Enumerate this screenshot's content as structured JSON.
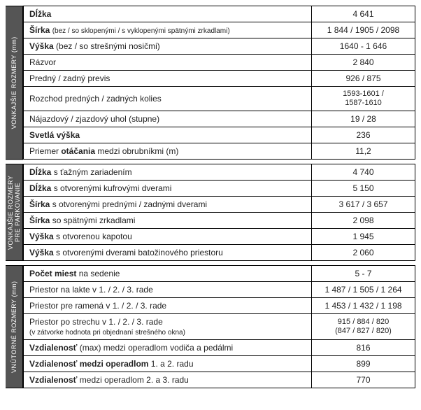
{
  "sections": [
    {
      "header": "VONKAJŠIE ROZMERY (mm)",
      "rows": [
        {
          "label_html": "<b>Dĺžka</b>",
          "value_html": "4 641"
        },
        {
          "label_html": "<b>Šírka</b> <span class='small'>(bez / so sklopenými / s vyklopenými spätnými zrkadlami)</span>",
          "value_html": "1 844 / 1905 / 2098"
        },
        {
          "label_html": "<b>Výška</b> (bez / so strešnými nosičmi)",
          "value_html": "1640 - 1 646"
        },
        {
          "label_html": "Rázvor",
          "value_html": "2 840"
        },
        {
          "label_html": "Predný / zadný previs",
          "value_html": "926 / 875"
        },
        {
          "label_html": "Rozchod predných / zadných kolies",
          "value_html": "<div class='twoline'>1593-1601 /<br>1587-1610</div>"
        },
        {
          "label_html": "Nájazdový / zjazdový uhol (stupne)",
          "value_html": "19 / 28"
        },
        {
          "label_html": "<b>Svetlá výška</b>",
          "value_html": "236"
        },
        {
          "label_html": "Priemer <b>otáčania</b> medzi obrubníkmi (m)",
          "value_html": "11,2"
        }
      ]
    },
    {
      "header": "VONKAJŠIE ROZMERY\nPRE PARKOVANIE",
      "rows": [
        {
          "label_html": "<b>Dĺžka</b> s ťažným zariadením",
          "value_html": "4 740"
        },
        {
          "label_html": "<b>Dĺžka</b> s otvorenými kufrovými dverami",
          "value_html": "5 150"
        },
        {
          "label_html": "<b>Šírka</b> s otvorenými prednými / zadnými dverami",
          "value_html": "3 617 / 3 657"
        },
        {
          "label_html": "<b>Šírka</b> so spätnými zrkadlami",
          "value_html": "2 098"
        },
        {
          "label_html": "<b>Výška</b> s otvorenou kapotou",
          "value_html": "1 945"
        },
        {
          "label_html": "<b>Výška</b> s otvorenými dverami batožinového priestoru",
          "value_html": "2 060"
        }
      ]
    },
    {
      "header": "VNÚTORNÉ ROZMERY (mm)",
      "rows": [
        {
          "label_html": "<b>Počet miest</b> na sedenie",
          "value_html": "5 - 7"
        },
        {
          "label_html": "Priestor na lakte v 1. / 2. / 3. rade",
          "value_html": "1 487 / 1 505 / 1 264"
        },
        {
          "label_html": "Priestor pre ramená v 1. / 2. / 3. rade",
          "value_html": "1 453 / 1 432 / 1 198"
        },
        {
          "label_html": "Priestor po strechu v 1. / 2. / 3. rade<br><span class='small'>(v zátvorke hodnota pri objednaní strešného okna)</span>",
          "value_html": "<div class='twoline'>915 / 884 / 820<br>(847 / 827 / 820)</div>"
        },
        {
          "label_html": "<b>Vzdialenosť</b> (max) medzi operadlom vodiča a pedálmi",
          "value_html": "816"
        },
        {
          "label_html": "<b>Vzdialenosť medzi operadlom</b> 1. a 2. radu",
          "value_html": "899"
        },
        {
          "label_html": "<b>Vzdialenosť</b> medzi operadlom 2. a 3. radu",
          "value_html": "770"
        }
      ]
    }
  ],
  "colors": {
    "header_bg": "#555555",
    "header_fg": "#ffffff",
    "border": "#000000",
    "text": "#222222",
    "background": "#ffffff"
  },
  "font_sizes": {
    "body": 12,
    "small": 10,
    "vlabel": 9
  }
}
